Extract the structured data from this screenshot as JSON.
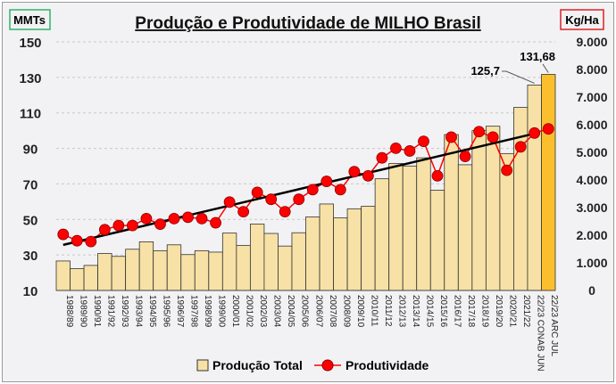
{
  "chart_data": {
    "type": "bar",
    "title": "Produção e Produtividade de MILHO Brasil",
    "ylabel": "MMTs",
    "y2label": "Kg/Ha",
    "ylim": [
      10,
      150
    ],
    "yticks": [
      "150",
      "130",
      "110",
      "90",
      "70",
      "50",
      "30",
      "10"
    ],
    "y2lim": [
      0,
      9000
    ],
    "y2ticks": [
      "9.000",
      "8.000",
      "7.000",
      "6.000",
      "5.000",
      "4.000",
      "3.000",
      "2.000",
      "1.000",
      "0"
    ],
    "grid": true,
    "legend_position": "bottom",
    "categories": [
      "1988/89",
      "1989/90",
      "1990/91",
      "1991/92",
      "1992/93",
      "1993/94",
      "1994/95",
      "1995/96",
      "1996/97",
      "1997/98",
      "1998/99",
      "1999/00",
      "2000/01",
      "2001/02",
      "2002/03",
      "2003/04",
      "2004/05",
      "2005/06",
      "2006/07",
      "2007/08",
      "2008/09",
      "2009/10",
      "2010/11",
      "2011/12",
      "2012/13",
      "2013/14",
      "2014/15",
      "2015/16",
      "2016/17",
      "2017/18",
      "2018/19",
      "2019/20",
      "2020/21",
      "2021/22",
      "22/23 CONAB JUN",
      "22/23 ARC JUL"
    ],
    "series": [
      {
        "name": "Produção Total",
        "type": "bar",
        "axis": "left",
        "color": "#f7e1a6",
        "highlight_color": "#fbbf2e",
        "values": [
          26.6,
          22.3,
          24.1,
          30.8,
          29.2,
          33.2,
          37.4,
          32.4,
          35.7,
          30.2,
          32.4,
          31.6,
          42.3,
          35.3,
          47.4,
          42.1,
          35.0,
          42.5,
          51.4,
          58.7,
          50.9,
          56.0,
          57.4,
          72.9,
          81.5,
          80.1,
          84.7,
          66.5,
          97.8,
          80.8,
          100.0,
          102.5,
          87.1,
          113.1,
          125.7,
          131.68
        ]
      },
      {
        "name": "Produtividade",
        "type": "line",
        "axis": "right",
        "color": "#ff0000",
        "values": [
          2030,
          1800,
          1770,
          2200,
          2350,
          2350,
          2600,
          2400,
          2600,
          2650,
          2600,
          2450,
          3200,
          2850,
          3550,
          3300,
          2850,
          3300,
          3650,
          3950,
          3650,
          4300,
          4150,
          4800,
          5150,
          5050,
          5400,
          4150,
          5550,
          4850,
          5750,
          5550,
          4350,
          5200,
          5700,
          5850
        ]
      }
    ],
    "trendline": {
      "axis": "right",
      "color": "#000000",
      "from": 1650,
      "to": 5680
    },
    "annotations": [
      "125,7",
      "131,68"
    ]
  }
}
